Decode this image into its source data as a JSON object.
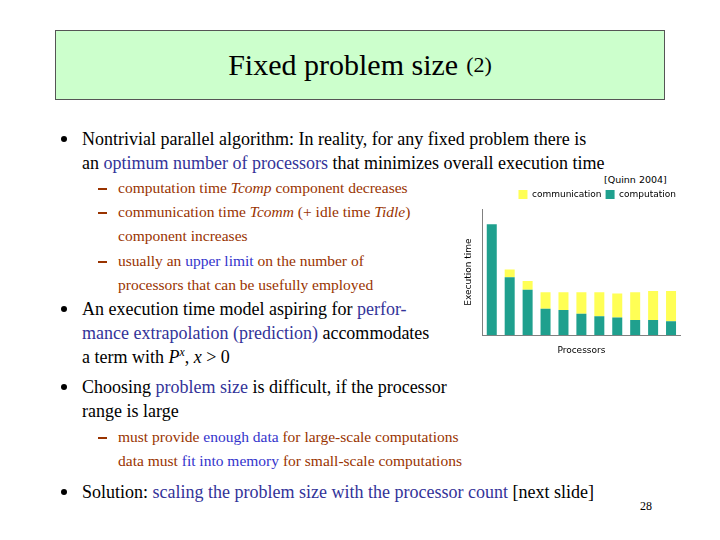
{
  "slide": {
    "title": "Fixed problem size",
    "title_suffix": "(2)",
    "citation": "[Quinn 2004]",
    "page_number": "28",
    "items": [
      {
        "level": 1,
        "lines": [
          [
            "Nontrivial parallel algorithm: In reality, for any fixed problem there is"
          ],
          [
            "an ",
            {
              "text": "optimum number of processors",
              "style": "highlight"
            },
            " that minimizes overall execution time"
          ]
        ]
      },
      {
        "level": 2,
        "lines": [
          [
            "computation time ",
            {
              "text": "Tcomp",
              "style": "italic"
            },
            " component decreases"
          ]
        ]
      },
      {
        "level": 2,
        "lines": [
          [
            "communication time ",
            {
              "text": "Tcomm",
              "style": "italic"
            },
            " (+ idle time ",
            {
              "text": "Tidle",
              "style": "italic"
            },
            ")"
          ],
          [
            "component increases"
          ]
        ]
      },
      {
        "level": 2,
        "lines": [
          [
            "usually an ",
            {
              "text": "upper limit",
              "style": "highlight"
            },
            " on the number of"
          ],
          [
            "processors that can be usefully employed"
          ]
        ]
      },
      {
        "level": 1,
        "lines": [
          [
            "An execution time model aspiring for ",
            {
              "text": "perfor-",
              "style": "highlight"
            }
          ],
          [
            {
              "text": "mance extrapolation (prediction)",
              "style": "highlight"
            },
            " accommodates"
          ],
          [
            "a term with ",
            {
              "text": "P",
              "style": "italic"
            },
            {
              "text": "x",
              "style": "superscript"
            },
            ", ",
            {
              "text": "x",
              "style": "italic"
            },
            " > 0"
          ]
        ]
      },
      {
        "level": 1,
        "lines": [
          [
            "Choosing ",
            {
              "text": "problem size",
              "style": "highlight"
            },
            " is difficult, if the processor"
          ],
          [
            "range is large"
          ]
        ]
      },
      {
        "level": 2,
        "lines": [
          [
            "must provide ",
            {
              "text": "enough data",
              "style": "highlight"
            },
            " for large-scale computations"
          ],
          [
            "data must ",
            {
              "text": "fit into memory",
              "style": "highlight"
            },
            " for small-scale computations"
          ]
        ]
      },
      {
        "level": 1,
        "lines": [
          [
            "Solution: ",
            {
              "text": "scaling the problem size with the processor count",
              "style": "highlight"
            },
            " [next slide]"
          ]
        ]
      }
    ]
  },
  "chart_data": {
    "type": "bar",
    "stacked": true,
    "x_label": "Processors",
    "y_label": "Execution time",
    "categories": [
      null,
      null,
      null,
      null,
      null,
      null,
      null,
      null,
      null,
      null,
      null
    ],
    "series": [
      {
        "name": "computation",
        "color": "#1fa08e",
        "values": [
          88,
          46,
          36,
          21,
          20,
          17,
          15,
          14,
          12,
          12,
          11
        ]
      },
      {
        "name": "communication",
        "color": "#ffff55",
        "values": [
          0,
          6,
          7,
          13,
          14,
          17,
          19,
          19,
          22,
          23,
          24
        ]
      }
    ],
    "ylim": [
      0,
      100
    ],
    "tick_labels": false,
    "grid": false,
    "legend": "upper right"
  }
}
